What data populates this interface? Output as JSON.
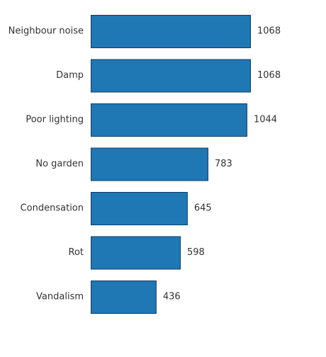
{
  "chart_data": {
    "type": "bar",
    "orientation": "horizontal",
    "categories": [
      "Neighbour noise",
      "Damp",
      "Poor lighting",
      "No garden",
      "Condensation",
      "Rot",
      "Vandalism"
    ],
    "values": [
      1068,
      1068,
      1044,
      783,
      645,
      598,
      436
    ],
    "title": "",
    "xlabel": "",
    "ylabel": "",
    "xlim": [
      0,
      1068
    ],
    "grid": false,
    "legend": "none",
    "bar_color": "#1f77b4",
    "bar_edge_color": "#0f3d66"
  }
}
